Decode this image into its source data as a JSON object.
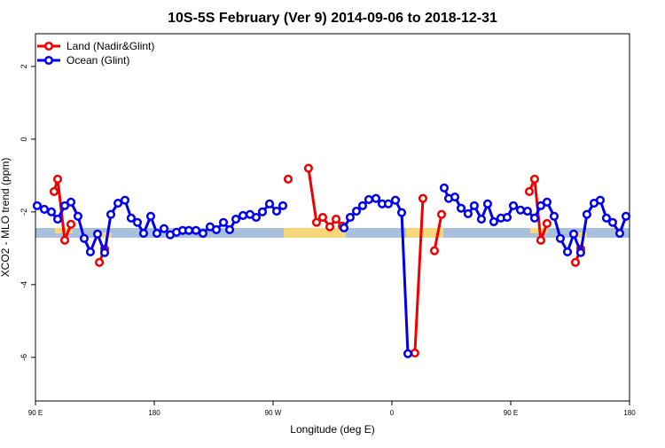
{
  "chart_data": {
    "type": "line",
    "title": "10S-5S February (Ver 9)   2014-09-06 to 2018-12-31",
    "xlabel": "Longitude (deg E)",
    "ylabel": "XCO2 - MLO trend (ppm)",
    "xlim": [
      90,
      540
    ],
    "xticks": [
      {
        "value": 90,
        "label": "90 E"
      },
      {
        "value": 180,
        "label": "180"
      },
      {
        "value": 270,
        "label": "90 W"
      },
      {
        "value": 360,
        "label": "0"
      },
      {
        "value": 450,
        "label": "90 E"
      },
      {
        "value": 540,
        "label": "180"
      }
    ],
    "ylim": [
      -7.2,
      2.9
    ],
    "yticks": [
      -6,
      -4,
      -2,
      0,
      2
    ],
    "legend": "top-left",
    "series": [
      {
        "name": "Land (Nadir&Glint)",
        "color": "#ee0000",
        "x": [
          104.1,
          106.8,
          112.2,
          116.9,
          null,
          138.4,
          142.4,
          null,
          281.4,
          null,
          296.8,
          302.9,
          307.6,
          313.0,
          317.7,
          322.4,
          null,
          377.4,
          383.5,
          null,
          392.2,
          397.6,
          null,
          464.1,
          468.1,
          472.8,
          477.5,
          null,
          499.0,
          503.0
        ],
        "values": [
          -1.44,
          -1.1,
          -2.78,
          -2.34,
          null,
          -3.39,
          -3.02,
          null,
          -1.1,
          null,
          -0.8,
          -2.29,
          -2.15,
          -2.41,
          -2.2,
          -2.39,
          null,
          -5.88,
          -1.63,
          null,
          -3.07,
          -2.07,
          null,
          -1.44,
          -1.1,
          -2.78,
          -2.32,
          null,
          -3.39,
          -3.02
        ]
      },
      {
        "name": "Ocean (Glint)",
        "color": "#0000ee",
        "x": [
          91.3,
          96.7,
          102.1,
          106.8,
          112.2,
          116.9,
          122.2,
          126.9,
          131.6,
          137.0,
          142.4,
          147.1,
          152.5,
          157.8,
          162.5,
          167.2,
          171.9,
          177.3,
          182.0,
          187.4,
          192.1,
          196.8,
          201.5,
          206.2,
          211.6,
          216.9,
          222.3,
          227.0,
          232.4,
          237.1,
          241.8,
          247.2,
          252.5,
          257.2,
          261.9,
          267.3,
          272.7,
          277.4,
          null,
          323.7,
          328.4,
          333.1,
          337.8,
          342.5,
          347.9,
          352.6,
          357.3,
          362.7,
          367.4,
          372.1,
          null,
          399.6,
          403.0,
          407.7,
          412.4,
          417.7,
          422.4,
          427.8,
          432.5,
          437.2,
          442.6,
          447.3,
          452.0,
          457.4,
          462.7,
          468.1,
          472.8,
          477.5,
          482.9,
          487.6,
          493.0,
          497.7,
          503.0,
          507.7,
          513.1,
          517.8,
          522.5,
          527.2,
          532.6,
          537.3
        ],
        "values": [
          -1.83,
          -1.93,
          -2.0,
          -2.2,
          -1.83,
          -1.73,
          -2.12,
          -2.73,
          -3.1,
          -2.61,
          -3.12,
          -2.07,
          -1.76,
          -1.68,
          -2.17,
          -2.29,
          -2.59,
          -2.12,
          -2.59,
          -2.46,
          -2.63,
          -2.56,
          -2.51,
          -2.51,
          -2.51,
          -2.59,
          -2.41,
          -2.49,
          -2.29,
          -2.49,
          -2.2,
          -2.1,
          -2.07,
          -2.15,
          -2.0,
          -1.78,
          -1.98,
          -1.83,
          null,
          -2.44,
          -2.15,
          -1.98,
          -1.83,
          -1.66,
          -1.63,
          -1.78,
          -1.78,
          -1.68,
          -2.02,
          -5.9,
          null,
          -1.34,
          -1.63,
          -1.59,
          -1.9,
          -2.05,
          -1.83,
          -2.2,
          -1.78,
          -2.27,
          -2.17,
          -2.15,
          -1.83,
          -1.95,
          -1.98,
          -2.17,
          -1.83,
          -1.73,
          -2.12,
          -2.73,
          -3.1,
          -2.61,
          -3.12,
          -2.07,
          -1.76,
          -1.68,
          -2.17,
          -2.29,
          -2.59,
          -2.12
        ]
      }
    ]
  }
}
